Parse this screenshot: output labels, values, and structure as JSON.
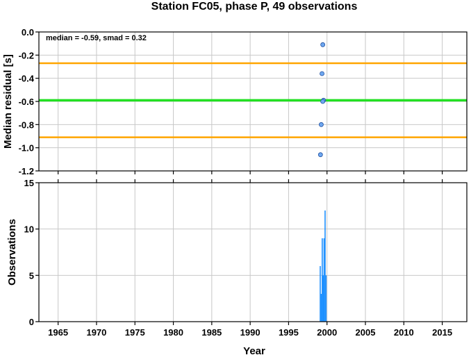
{
  "title": "Station FC05, phase P, 49 observations",
  "colors": {
    "median_line": "#22e022",
    "smad_lines": "#ffa500",
    "points_fill": "#6fa8f0",
    "points_stroke": "#1f4fa0",
    "bars": "#1e90ff",
    "grid": "#c8c8c8"
  },
  "chart_data": [
    {
      "type": "scatter",
      "ylabel": "Median residual [s]",
      "annotation": "median = -0.59, smad = 0.32",
      "xlim": [
        1962.5,
        2018.2
      ],
      "ylim": [
        -1.2,
        0.0
      ],
      "yticks": [
        0.0,
        -0.2,
        -0.4,
        -0.6,
        -0.8,
        -1.0,
        -1.2
      ],
      "ytick_labels": [
        "0.0",
        "-0.2",
        "-0.4",
        "-0.6",
        "-0.8",
        "-1.0",
        "-1.2"
      ],
      "xticks": [
        1965,
        1970,
        1975,
        1980,
        1985,
        1990,
        1995,
        2000,
        2005,
        2010,
        2015
      ],
      "grid": true,
      "hlines": [
        {
          "y": -0.59,
          "role": "median"
        },
        {
          "y": -0.27,
          "role": "median + smad"
        },
        {
          "y": -0.91,
          "role": "median - smad"
        }
      ],
      "points": [
        {
          "x": 1999.45,
          "y": -0.11
        },
        {
          "x": 1999.35,
          "y": -0.36
        },
        {
          "x": 1999.55,
          "y": -0.59
        },
        {
          "x": 1999.45,
          "y": -0.6
        },
        {
          "x": 1999.25,
          "y": -0.8
        },
        {
          "x": 1999.15,
          "y": -1.06
        }
      ]
    },
    {
      "type": "bar",
      "xlabel": "Year",
      "ylabel": "Observations",
      "xlim": [
        1962.5,
        2018.2
      ],
      "ylim": [
        0,
        15
      ],
      "yticks": [
        0,
        5,
        10,
        15
      ],
      "ytick_labels": [
        "0",
        "5",
        "10",
        "15"
      ],
      "xticks": [
        1965,
        1970,
        1975,
        1980,
        1985,
        1990,
        1995,
        2000,
        2005,
        2010,
        2015
      ],
      "xtick_labels": [
        "1965",
        "1970",
        "1975",
        "1980",
        "1985",
        "1990",
        "1995",
        "2000",
        "2005",
        "2010",
        "2015"
      ],
      "grid": true,
      "bars": [
        {
          "x": 1999.12,
          "value": 6
        },
        {
          "x": 1999.25,
          "value": 3
        },
        {
          "x": 1999.38,
          "value": 9
        },
        {
          "x": 1999.5,
          "value": 5
        },
        {
          "x": 1999.62,
          "value": 9
        },
        {
          "x": 1999.75,
          "value": 12
        },
        {
          "x": 1999.88,
          "value": 5
        }
      ]
    }
  ]
}
